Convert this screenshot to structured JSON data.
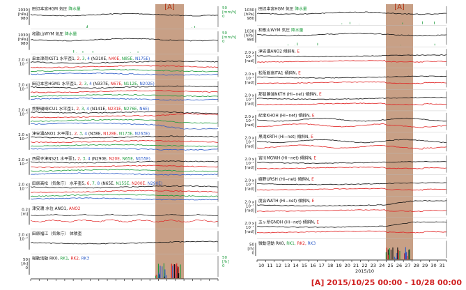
{
  "band_label": "[A]",
  "period_caption": "[A] 2015/10/25 00:00 - 10/28 00:00",
  "colors": {
    "black": "#111111",
    "red": "#e02020",
    "green": "#1a9a3a",
    "blue": "#2a5ac8",
    "band": "#c8a086"
  },
  "x_axis": {
    "days": [
      "10",
      "11",
      "12",
      "13",
      "14",
      "15",
      "16",
      "17",
      "18",
      "19",
      "20",
      "21",
      "22",
      "23",
      "24",
      "25",
      "26",
      "27",
      "28",
      "29",
      "30",
      "31"
    ],
    "month_label": "2015/10"
  },
  "left_panels": [
    {
      "title_parts": [
        [
          "田辺本宮HGM 気圧",
          "#111111"
        ],
        [
          " 降水量",
          "#1a9a3a"
        ]
      ],
      "type": "press",
      "yl": [
        "1030",
        "[hPa]",
        "980"
      ],
      "yr": [
        "50",
        "[mm/h]",
        "0"
      ]
    },
    {
      "title_parts": [
        [
          "和歌山WYM 気圧",
          "#111111"
        ],
        [
          " 降水量",
          "#1a9a3a"
        ]
      ],
      "type": "press",
      "yl": [
        "1030",
        "[hPa]",
        "980"
      ],
      "yr": [
        "50",
        "[mm/h]",
        "0"
      ]
    },
    {
      "title_parts": [
        [
          "串本津荷KST1 水平歪1, ",
          "#111111"
        ],
        [
          "2, ",
          "#e02020"
        ],
        [
          "3, ",
          "#1a9a3a"
        ],
        [
          "4 ",
          "#2a5ac8"
        ],
        [
          "(N310E, ",
          "#111111"
        ],
        [
          "N40E, ",
          "#e02020"
        ],
        [
          "N85E, ",
          "#1a9a3a"
        ],
        [
          "N175E)",
          "#2a5ac8"
        ]
      ],
      "type": "strain",
      "yl": [
        "2.0 x",
        "10⁻⁷",
        ""
      ]
    },
    {
      "title_parts": [
        [
          "田辺本宮HGM1 水平歪1, ",
          "#111111"
        ],
        [
          "2, ",
          "#e02020"
        ],
        [
          "3, ",
          "#1a9a3a"
        ],
        [
          "4 ",
          "#2a5ac8"
        ],
        [
          "(N337E, ",
          "#111111"
        ],
        [
          "N67E, ",
          "#e02020"
        ],
        [
          "N112E, ",
          "#1a9a3a"
        ],
        [
          "N202E)",
          "#2a5ac8"
        ]
      ],
      "type": "strain",
      "yl": [
        "2.0 x",
        "10⁻⁷",
        ""
      ]
    },
    {
      "title_parts": [
        [
          "熊野磯崎ICU1 水平歪1, ",
          "#111111"
        ],
        [
          "2, ",
          "#e02020"
        ],
        [
          "3, ",
          "#1a9a3a"
        ],
        [
          "4 ",
          "#2a5ac8"
        ],
        [
          "(N141E, ",
          "#111111"
        ],
        [
          "N231E, ",
          "#e02020"
        ],
        [
          "N276E, ",
          "#1a9a3a"
        ],
        [
          "N6E)",
          "#2a5ac8"
        ]
      ],
      "type": "strain_step",
      "yl": [
        "2.0 x",
        "10⁻⁷",
        ""
      ]
    },
    {
      "title_parts": [
        [
          "津安濃ANO1 水平歪1, ",
          "#111111"
        ],
        [
          "2, ",
          "#e02020"
        ],
        [
          "3, ",
          "#1a9a3a"
        ],
        [
          "4 ",
          "#2a5ac8"
        ],
        [
          "(N38E, ",
          "#111111"
        ],
        [
          "N128E, ",
          "#e02020"
        ],
        [
          "N173E, ",
          "#1a9a3a"
        ],
        [
          "N263E)",
          "#2a5ac8"
        ]
      ],
      "type": "strain",
      "yl": [
        "2.0 x",
        "10⁻⁷",
        ""
      ]
    },
    {
      "title_parts": [
        [
          "西尾寺津NS21 水平歪1, ",
          "#111111"
        ],
        [
          "2, ",
          "#e02020"
        ],
        [
          "3, ",
          "#1a9a3a"
        ],
        [
          "4 ",
          "#2a5ac8"
        ],
        [
          "(N290E, ",
          "#111111"
        ],
        [
          "N20E, ",
          "#e02020"
        ],
        [
          "N65E, ",
          "#1a9a3a"
        ],
        [
          "N155E)",
          "#2a5ac8"
        ]
      ],
      "type": "strain",
      "yl": [
        "2.0 x",
        "10⁻⁷",
        ""
      ]
    },
    {
      "title_parts": [
        [
          "田原高松（気象庁） 水平歪5, ",
          "#111111"
        ],
        [
          "6, ",
          "#e02020"
        ],
        [
          "7, ",
          "#1a9a3a"
        ],
        [
          "8 ",
          "#2a5ac8"
        ],
        [
          "(N65E, ",
          "#111111"
        ],
        [
          "N155E, ",
          "#1a9a3a"
        ],
        [
          "N200E, ",
          "#e02020"
        ],
        [
          "N290E)",
          "#2a5ac8"
        ]
      ],
      "type": "strain",
      "yl": [
        "2.0 x",
        "10⁻⁷",
        ""
      ]
    },
    {
      "title_parts": [
        [
          "津安濃 水位 ANO1, ",
          "#111111"
        ],
        [
          "ANO2",
          "#e02020"
        ]
      ],
      "type": "water",
      "yl": [
        "0.2",
        "[m]",
        ""
      ]
    },
    {
      "title_parts": [
        [
          "田原福江（気象庁） 体積歪",
          "#111111"
        ]
      ],
      "type": "vol",
      "yl": [
        "2.0 x",
        "10⁻⁷",
        ""
      ]
    },
    {
      "title_parts": [
        [
          "微動活動 RK0, ",
          "#111111"
        ],
        [
          "RK1, ",
          "#1a9a3a"
        ],
        [
          "RK2, ",
          "#e02020"
        ],
        [
          "RK3",
          "#2a5ac8"
        ]
      ],
      "type": "tremor",
      "yl": [
        "50",
        "[/h]",
        "0"
      ],
      "yr": [
        "50",
        "[/h]",
        "0"
      ]
    }
  ],
  "right_panels": [
    {
      "title_parts": [
        [
          "田辺本宮HGM 気圧",
          "#111111"
        ],
        [
          " 降水量",
          "#1a9a3a"
        ]
      ],
      "type": "press",
      "yl": [
        "1030",
        "[hPa]",
        "980"
      ],
      "yr": [
        "50",
        "[mm/h]",
        "0"
      ]
    },
    {
      "title_parts": [
        [
          "和歌山WYM 気圧",
          "#111111"
        ],
        [
          " 降水量",
          "#1a9a3a"
        ]
      ],
      "type": "press",
      "yl": [
        "1030",
        "[hPa]",
        "980"
      ],
      "yr": [
        "50",
        "[mm/h]",
        "0"
      ]
    },
    {
      "title_parts": [
        [
          "津安濃ANO2 傾斜N, ",
          "#111111"
        ],
        [
          "E",
          "#e02020"
        ]
      ],
      "type": "tilt",
      "yl": [
        "2.0 x",
        "10⁻⁷",
        "[rad]"
      ]
    },
    {
      "title_parts": [
        [
          "松阪飯高ITA1 傾斜N, ",
          "#111111"
        ],
        [
          "E",
          "#e02020"
        ]
      ],
      "type": "tilt",
      "yl": [
        "2.0 x",
        "10⁻⁷",
        "[rad]"
      ]
    },
    {
      "title_parts": [
        [
          "那智勝浦NKTH (Hi−net) 傾斜N, ",
          "#111111"
        ],
        [
          "E",
          "#e02020"
        ]
      ],
      "type": "tilt",
      "yl": [
        "2.0 x",
        "10⁻⁷",
        "[rad]"
      ]
    },
    {
      "title_parts": [
        [
          "紀宝KHOH (Hi−net) 傾斜N, ",
          "#111111"
        ],
        [
          "E",
          "#e02020"
        ]
      ],
      "type": "tilt_w",
      "yl": [
        "2.0 x",
        "10⁻⁷",
        "[rad]"
      ]
    },
    {
      "title_parts": [
        [
          "黒滝KRTH (Hi−net) 傾斜N, ",
          "#111111"
        ],
        [
          "E",
          "#e02020"
        ]
      ],
      "type": "tilt_w",
      "yl": [
        "2.0 x",
        "10⁻⁷",
        "[rad]"
      ]
    },
    {
      "title_parts": [
        [
          "宮川MGWH (Hi−net) 傾斜N, ",
          "#111111"
        ],
        [
          "E",
          "#e02020"
        ]
      ],
      "type": "tilt",
      "yl": [
        "2.0 x",
        "10⁻⁷",
        "[rad]"
      ]
    },
    {
      "title_parts": [
        [
          "嬉野URSH (Hi−net) 傾斜N, ",
          "#111111"
        ],
        [
          "E",
          "#e02020"
        ]
      ],
      "type": "tilt",
      "yl": [
        "2.0 x",
        "10⁻⁷",
        "[rad]"
      ]
    },
    {
      "title_parts": [
        [
          "度会WATH (Hi−net) 傾斜N, ",
          "#111111"
        ],
        [
          "E",
          "#e02020"
        ]
      ],
      "type": "tilt_up",
      "yl": [
        "2.0 x",
        "10⁻⁷",
        "[rad]"
      ]
    },
    {
      "title_parts": [
        [
          "五ヶ所GNOH (Hi−net) 傾斜N, ",
          "#111111"
        ],
        [
          "E",
          "#e02020"
        ]
      ],
      "type": "tilt_up",
      "yl": [
        "2.0 x",
        "10⁻⁷",
        "[rad]"
      ]
    },
    {
      "title_parts": [
        [
          "微動活動 RK0, ",
          "#111111"
        ],
        [
          "RK1, ",
          "#1a9a3a"
        ],
        [
          "RK2, ",
          "#e02020"
        ],
        [
          "RK3",
          "#2a5ac8"
        ]
      ],
      "type": "tremor",
      "yl": [
        "50",
        "[/h]",
        "0"
      ]
    }
  ],
  "chart_data": {
    "type": "line",
    "title": "",
    "x_unit": "day of 2015/10",
    "x_range": [
      10,
      32
    ],
    "highlight_period": {
      "label": "[A]",
      "start": "2015/10/25 00:00",
      "end": "2015/10/28 00:00"
    },
    "scale_labels": {
      "pressure": "980–1030 hPa",
      "rain": "0–50 mm/h",
      "strain": "2.0 x 10⁻⁷",
      "tilt": "2.0 x 10⁻⁷ rad",
      "water": "0.2 m",
      "tremor": "0–50 /h"
    }
  }
}
